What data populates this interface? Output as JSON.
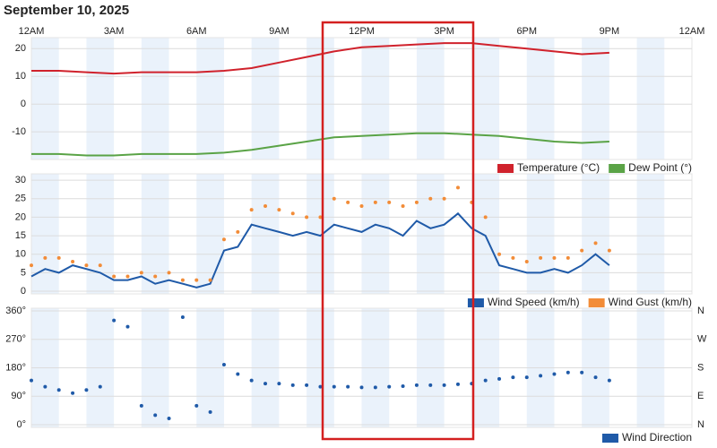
{
  "chart_data": [
    {
      "type": "line",
      "title": "September 10, 2025",
      "x": [
        0,
        1,
        2,
        3,
        4,
        5,
        6,
        7,
        8,
        9,
        10,
        11,
        12,
        13,
        14,
        15,
        16,
        17,
        18,
        19,
        20,
        21
      ],
      "xlim": [
        0,
        24
      ],
      "xticks": [
        {
          "value": 0,
          "label": "12AM"
        },
        {
          "value": 3,
          "label": "3AM"
        },
        {
          "value": 6,
          "label": "6AM"
        },
        {
          "value": 9,
          "label": "9AM"
        },
        {
          "value": 12,
          "label": "12PM"
        },
        {
          "value": 15,
          "label": "3PM"
        },
        {
          "value": 18,
          "label": "6PM"
        },
        {
          "value": 21,
          "label": "9PM"
        },
        {
          "value": 24,
          "label": "12AM"
        }
      ],
      "ylim": [
        -19,
        23
      ],
      "yticks": [
        -10,
        0,
        10,
        20
      ],
      "series": [
        {
          "name": "Temperature (°C)",
          "color": "#d0222c",
          "values": [
            12,
            12,
            11.5,
            11,
            11.5,
            11.5,
            11.5,
            12,
            13,
            15,
            17,
            19,
            20.5,
            21,
            21.5,
            22,
            22,
            21,
            20,
            19,
            18,
            18.5
          ]
        },
        {
          "name": "Dew Point (°)",
          "color": "#5aa346",
          "values": [
            -18,
            -18,
            -18.5,
            -18.5,
            -18,
            -18,
            -18,
            -17.5,
            -16.5,
            -15,
            -13.5,
            -12,
            -11.5,
            -11,
            -10.5,
            -10.5,
            -11,
            -11.5,
            -12.5,
            -13.5,
            -14,
            -13.5
          ]
        }
      ]
    },
    {
      "type": "line",
      "x": [
        0,
        0.5,
        1,
        1.5,
        2,
        2.5,
        3,
        3.5,
        4,
        4.5,
        5,
        5.5,
        6,
        6.5,
        7,
        7.5,
        8,
        8.5,
        9,
        9.5,
        10,
        10.5,
        11,
        11.5,
        12,
        12.5,
        13,
        13.5,
        14,
        14.5,
        15,
        15.5,
        16,
        16.5,
        17,
        17.5,
        18,
        18.5,
        19,
        19.5,
        20,
        20.5,
        21
      ],
      "xlim": [
        0,
        24
      ],
      "ylim": [
        0,
        31
      ],
      "yticks": [
        0,
        5,
        10,
        15,
        20,
        25,
        30
      ],
      "series": [
        {
          "name": "Wind Speed (km/h)",
          "color": "#1f5aa8",
          "mode": "line",
          "values": [
            4,
            6,
            5,
            7,
            6,
            5,
            3,
            3,
            4,
            2,
            3,
            2,
            1,
            2,
            11,
            12,
            18,
            17,
            16,
            15,
            16,
            15,
            18,
            17,
            16,
            18,
            17,
            15,
            19,
            17,
            18,
            21,
            17,
            15,
            7,
            6,
            5,
            5,
            6,
            5,
            7,
            10,
            7
          ]
        },
        {
          "name": "Wind Gust (km/h)",
          "color": "#f28c38",
          "mode": "markers",
          "values": [
            7,
            9,
            9,
            8,
            7,
            7,
            4,
            4,
            5,
            4,
            5,
            3,
            3,
            3,
            14,
            16,
            22,
            23,
            22,
            21,
            20,
            20,
            25,
            24,
            23,
            24,
            24,
            23,
            24,
            25,
            25,
            28,
            24,
            20,
            10,
            9,
            8,
            9,
            9,
            9,
            11,
            13,
            11
          ]
        }
      ]
    },
    {
      "type": "scatter",
      "x": [
        0,
        0.5,
        1,
        1.5,
        2,
        2.5,
        3,
        3.5,
        4,
        4.5,
        5,
        5.5,
        6,
        6.5,
        7,
        7.5,
        8,
        8.5,
        9,
        9.5,
        10,
        10.5,
        11,
        11.5,
        12,
        12.5,
        13,
        13.5,
        14,
        14.5,
        15,
        15.5,
        16,
        16.5,
        17,
        17.5,
        18,
        18.5,
        19,
        19.5,
        20,
        20.5,
        21
      ],
      "xlim": [
        0,
        24
      ],
      "ylim": [
        0,
        360
      ],
      "yticks": [
        {
          "value": 0,
          "label": "0°"
        },
        {
          "value": 90,
          "label": "90°"
        },
        {
          "value": 180,
          "label": "180°"
        },
        {
          "value": 270,
          "label": "270°"
        },
        {
          "value": 360,
          "label": "360°"
        }
      ],
      "y2lim": [
        0,
        360
      ],
      "y2ticks": [
        {
          "value": 0,
          "label": "N"
        },
        {
          "value": 90,
          "label": "E"
        },
        {
          "value": 180,
          "label": "S"
        },
        {
          "value": 270,
          "label": "W"
        },
        {
          "value": 360,
          "label": "N"
        }
      ],
      "series": [
        {
          "name": "Wind Direction",
          "color": "#1f5aa8",
          "values": [
            140,
            120,
            110,
            100,
            110,
            120,
            330,
            310,
            60,
            30,
            20,
            340,
            60,
            40,
            190,
            160,
            140,
            130,
            130,
            125,
            125,
            120,
            120,
            120,
            118,
            118,
            120,
            122,
            125,
            125,
            125,
            128,
            130,
            140,
            145,
            150,
            150,
            155,
            160,
            165,
            165,
            150,
            140
          ]
        }
      ]
    }
  ]
}
